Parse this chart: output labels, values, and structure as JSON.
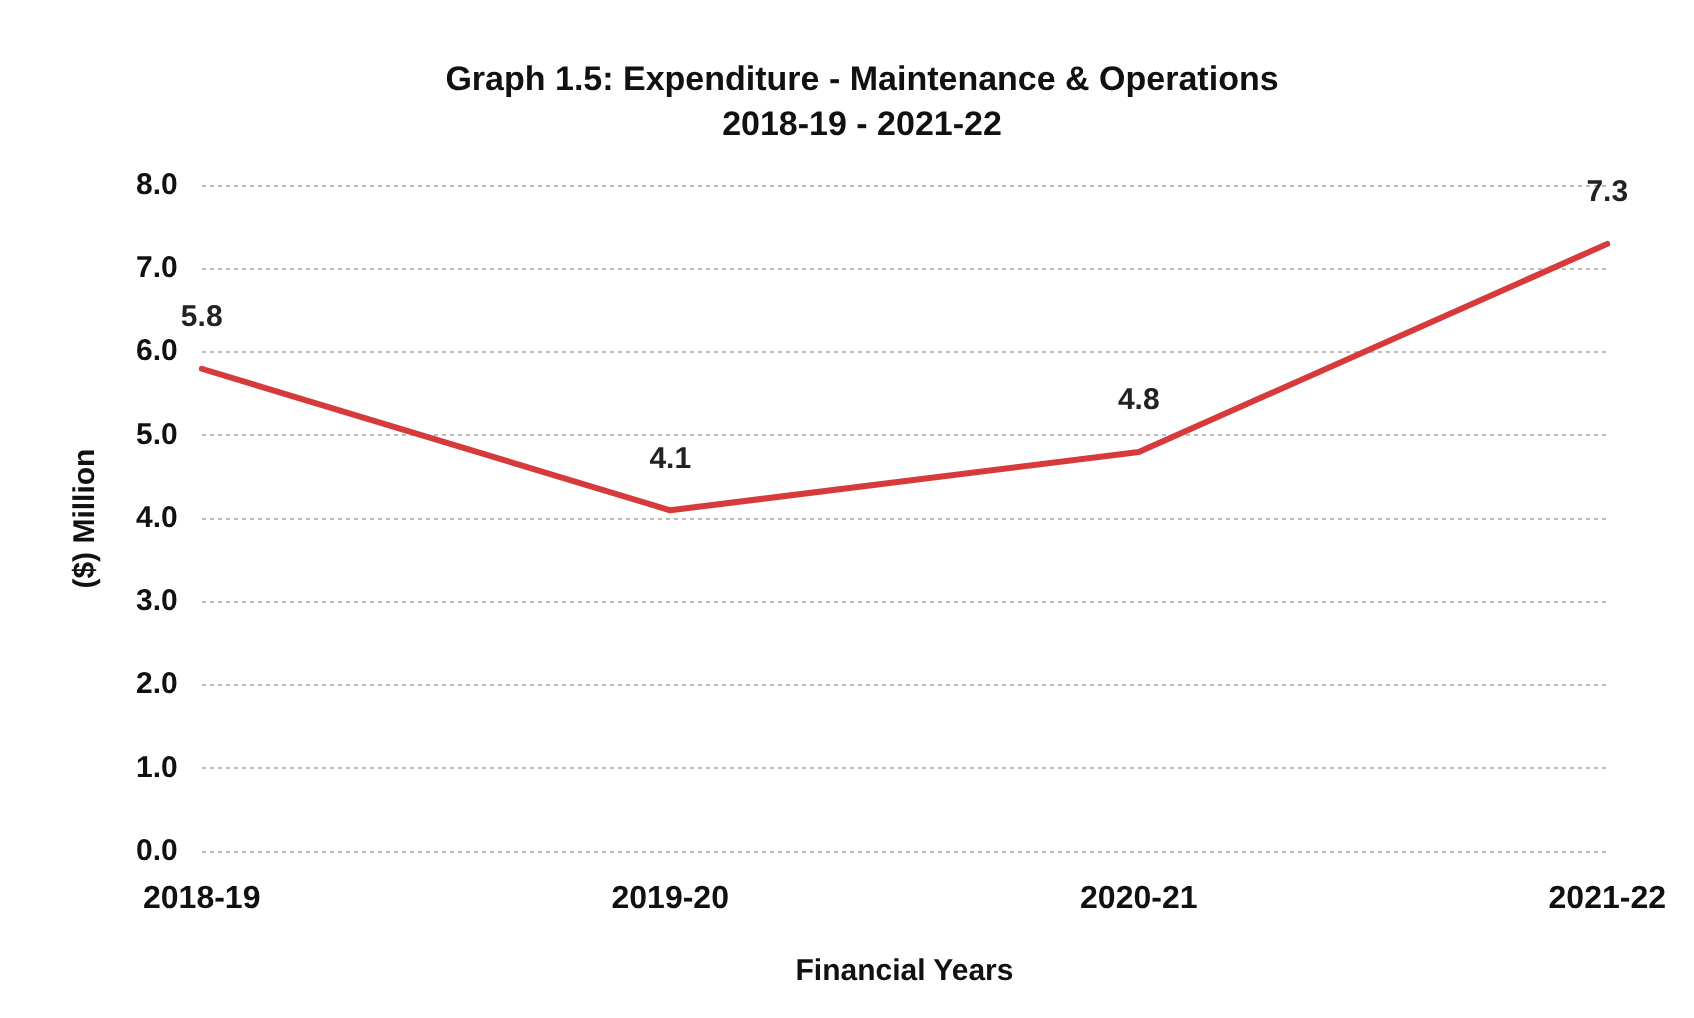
{
  "chart_data": {
    "type": "line",
    "title": "Graph 1.5: Expenditure - Maintenance & Operations",
    "subtitle": "2018-19 - 2021-22",
    "xlabel": "Financial Years",
    "ylabel": "($) Million",
    "categories": [
      "2018-19",
      "2019-20",
      "2020-21",
      "2021-22"
    ],
    "series": [
      {
        "color": "#d63a3a",
        "values": [
          5.8,
          4.1,
          4.8,
          7.3
        ]
      }
    ],
    "ylim": [
      0,
      8
    ],
    "yticks": [
      {
        "value": 0,
        "label": "0.0"
      },
      {
        "value": 1,
        "label": "1.0"
      },
      {
        "value": 2,
        "label": "2.0"
      },
      {
        "value": 3,
        "label": "3.0"
      },
      {
        "value": 4,
        "label": "4.0"
      },
      {
        "value": 5,
        "label": "5.0"
      },
      {
        "value": 6,
        "label": "6.0"
      },
      {
        "value": 7,
        "label": "7.0"
      },
      {
        "value": 8,
        "label": "8.0"
      }
    ],
    "grid": "y",
    "legend": false,
    "marker": "none",
    "line_style": "solid",
    "data_labels": true
  }
}
